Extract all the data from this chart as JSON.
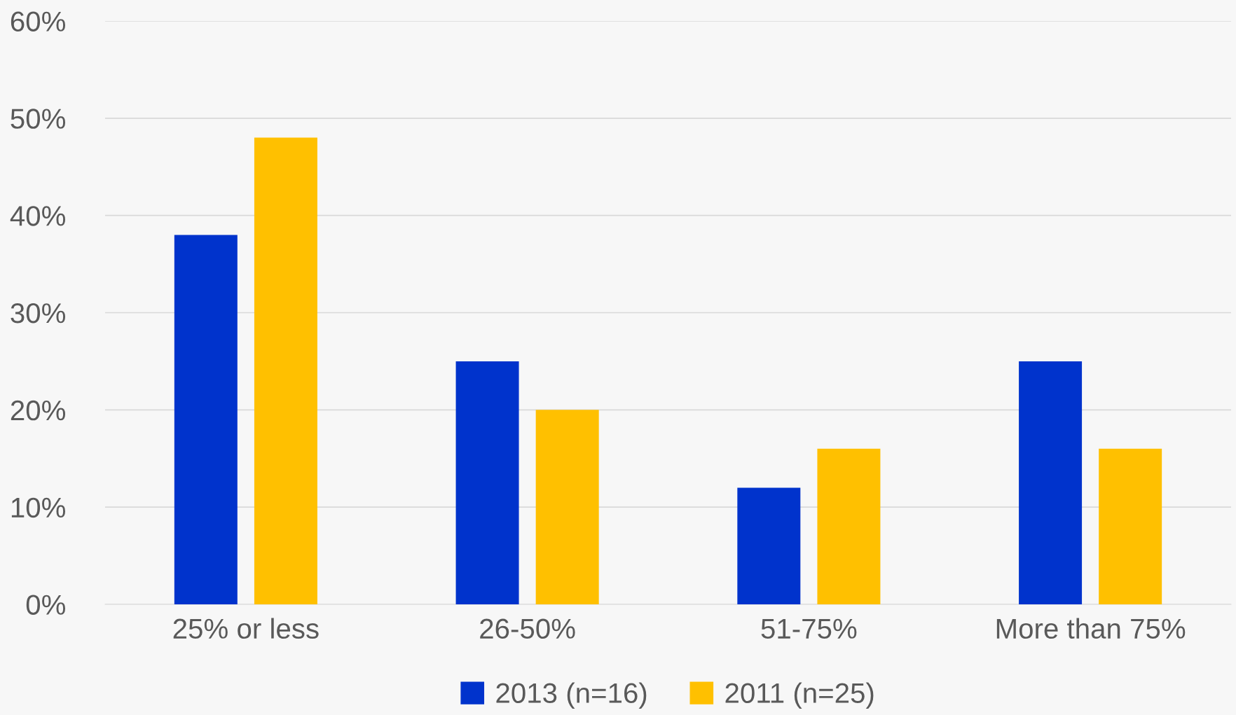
{
  "chart_data": {
    "type": "bar",
    "categories": [
      "25% or less",
      "26-50%",
      "51-75%",
      "More than 75%"
    ],
    "series": [
      {
        "name": "2013 (n=16)",
        "color": "#0033cc",
        "values": [
          38,
          25,
          12,
          25
        ]
      },
      {
        "name": "2011 (n=25)",
        "color": "#ffc000",
        "values": [
          48,
          20,
          16,
          16
        ]
      }
    ],
    "ylim": [
      0,
      60
    ],
    "yticks": [
      {
        "value": 0,
        "label": "0%"
      },
      {
        "value": 10,
        "label": "10%"
      },
      {
        "value": 20,
        "label": "20%"
      },
      {
        "value": 30,
        "label": "30%"
      },
      {
        "value": 40,
        "label": "40%"
      },
      {
        "value": 50,
        "label": "50%"
      },
      {
        "value": 60,
        "label": "60%"
      }
    ],
    "grid": "y",
    "legend": "bottom"
  }
}
